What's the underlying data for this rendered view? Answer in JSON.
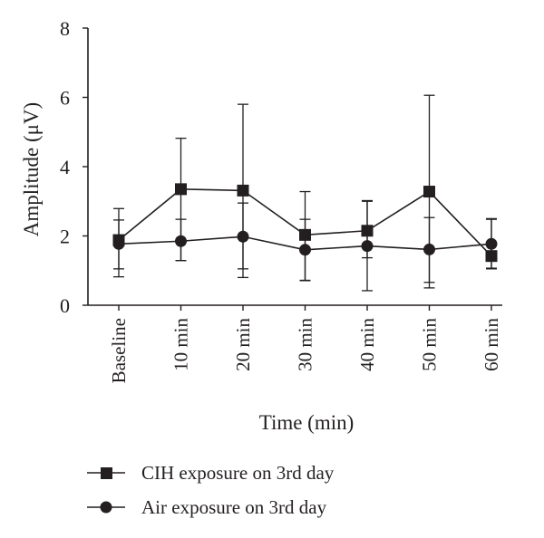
{
  "chart_data": {
    "type": "line",
    "title": "",
    "xlabel": "Time (min)",
    "ylabel": "Amplitude (μV)",
    "ylim": [
      0,
      8
    ],
    "yticks": [
      0,
      2,
      4,
      6,
      8
    ],
    "categories": [
      "Baseline",
      "10 min",
      "20 min",
      "30 min",
      "40 min",
      "50 min",
      "60 min"
    ],
    "grid": false,
    "legend_position": "bottom",
    "series": [
      {
        "name": "CIH exposure on 3rd day",
        "marker": "square",
        "values": [
          1.88,
          3.35,
          3.31,
          2.03,
          2.15,
          3.28,
          1.42
        ],
        "error_upper": [
          2.79,
          4.82,
          5.8,
          3.28,
          3.02,
          6.06,
          2.48
        ],
        "error_lower": [
          0.82,
          1.29,
          0.8,
          0.71,
          1.37,
          0.5,
          1.07
        ]
      },
      {
        "name": "Air exposure on 3rd day",
        "marker": "circle",
        "values": [
          1.77,
          1.85,
          1.98,
          1.6,
          1.71,
          1.61,
          1.77
        ],
        "error_upper": [
          2.46,
          2.48,
          2.95,
          2.48,
          3.0,
          2.53,
          2.5
        ],
        "error_lower": [
          1.05,
          1.29,
          1.05,
          0.72,
          0.42,
          0.66,
          1.05
        ]
      }
    ]
  }
}
